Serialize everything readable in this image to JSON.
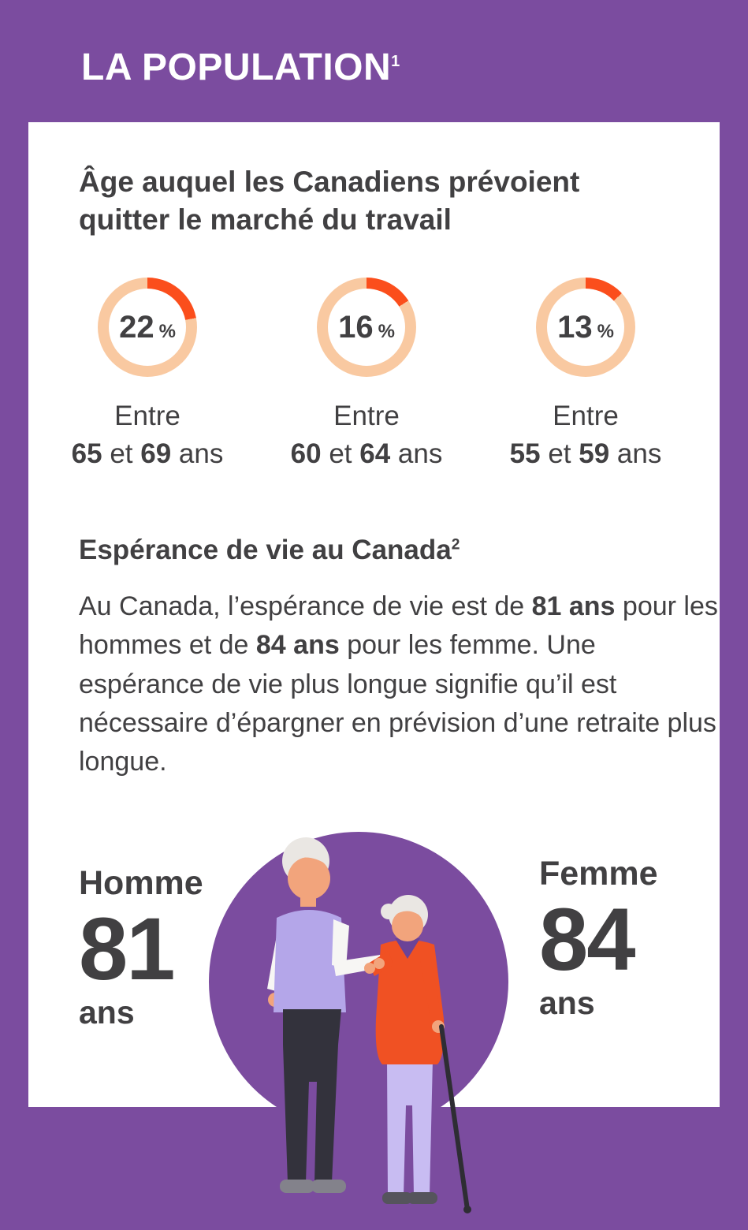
{
  "colors": {
    "purple": "#7B4C9F",
    "card_bg": "#FFFFFF",
    "title_text": "#FFFFFF",
    "text_dark": "#414042",
    "donut_track": "#F9C9A1",
    "donut_segment": "#FB4E1C",
    "orange": "#F05123",
    "lavender": "#B4A6E9",
    "light_pants": "#C8BCF2",
    "skin": "#F2A47C",
    "hair": "#EAE7E3",
    "sleeve": "#F7F6F4",
    "dark_pants": "#33323C",
    "shoe_gray": "#83828B",
    "shoe_dark": "#55545C",
    "cane": "#2E2D33",
    "scarf": "#6B4397"
  },
  "header": {
    "title": "LA POPULATION",
    "footnote": "1"
  },
  "retirement": {
    "heading_lines": [
      "Âge auquel les Canadiens prévoient",
      "quitter le marché du travail"
    ],
    "donuts": [
      {
        "percent": 22,
        "unit": "%",
        "line1": "Entre",
        "line2": [
          {
            "t": "65",
            "b": true
          },
          {
            "t": " et ",
            "b": false
          },
          {
            "t": "69",
            "b": true
          },
          {
            "t": " ans",
            "b": false
          }
        ]
      },
      {
        "percent": 16,
        "unit": "%",
        "line1": "Entre",
        "line2": [
          {
            "t": "60",
            "b": true
          },
          {
            "t": " et ",
            "b": false
          },
          {
            "t": "64",
            "b": true
          },
          {
            "t": " ans",
            "b": false
          }
        ]
      },
      {
        "percent": 13,
        "unit": "%",
        "line1": "Entre",
        "line2": [
          {
            "t": "55",
            "b": true
          },
          {
            "t": " et ",
            "b": false
          },
          {
            "t": "59",
            "b": true
          },
          {
            "t": " ans",
            "b": false
          }
        ]
      }
    ]
  },
  "life_expectancy": {
    "heading": "Espérance de vie au Canada",
    "footnote": "2",
    "paragraph": [
      {
        "t": "Au Canada, l’espérance de vie est de ",
        "b": false
      },
      {
        "t": "81 ans",
        "b": true
      },
      {
        "t": " pour les hommes et de ",
        "b": false
      },
      {
        "t": "84 ans",
        "b": true
      },
      {
        "t": " pour les femme. Une espérance de vie plus longue signifie qu’il est nécessaire d’épargner en prévision d’une retraite plus longue.",
        "b": false
      }
    ],
    "homme": {
      "label": "Homme",
      "value": "81",
      "unit": "ans"
    },
    "femme": {
      "label": "Femme",
      "value": "84",
      "unit": "ans"
    }
  },
  "chart_data": [
    {
      "type": "pie",
      "title": "Âge auquel les Canadiens prévoient quitter le marché du travail",
      "unit": "%",
      "categories": [
        "Entre 65 et 69 ans",
        "Entre 60 et 64 ans",
        "Entre 55 et 59 ans"
      ],
      "values": [
        22,
        16,
        13
      ],
      "style": "three single-value donut gauges, orange segment starting at 12 o’clock clockwise on a peach track"
    },
    {
      "type": "bar",
      "title": "Espérance de vie au Canada (ans)",
      "categories": [
        "Homme",
        "Femme"
      ],
      "values": [
        81,
        84
      ],
      "unit": "ans",
      "style": "large numeric callouts flanking an elderly-couple illustration in a purple circle"
    }
  ]
}
